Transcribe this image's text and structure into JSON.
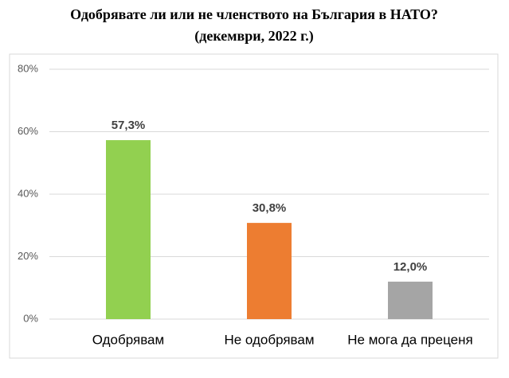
{
  "chart_data": {
    "type": "bar",
    "title": "Одобрявате ли или не членството на България в НАТО?",
    "subtitle": "(декември, 2022 г.)",
    "categories": [
      "Одобрявам",
      "Не одобрявам",
      "Не мога да преценя"
    ],
    "values": [
      57.3,
      30.8,
      12.0
    ],
    "value_labels": [
      "57,3%",
      "30,8%",
      "12,0%"
    ],
    "colors": [
      "#92d050",
      "#ed7d31",
      "#a5a5a5"
    ],
    "ylim": [
      0,
      80
    ],
    "yticks": [
      {
        "value": 0,
        "label": "0%"
      },
      {
        "value": 20,
        "label": "20%"
      },
      {
        "value": 40,
        "label": "40%"
      },
      {
        "value": 60,
        "label": "60%"
      },
      {
        "value": 80,
        "label": "80%"
      }
    ],
    "grid": true
  }
}
